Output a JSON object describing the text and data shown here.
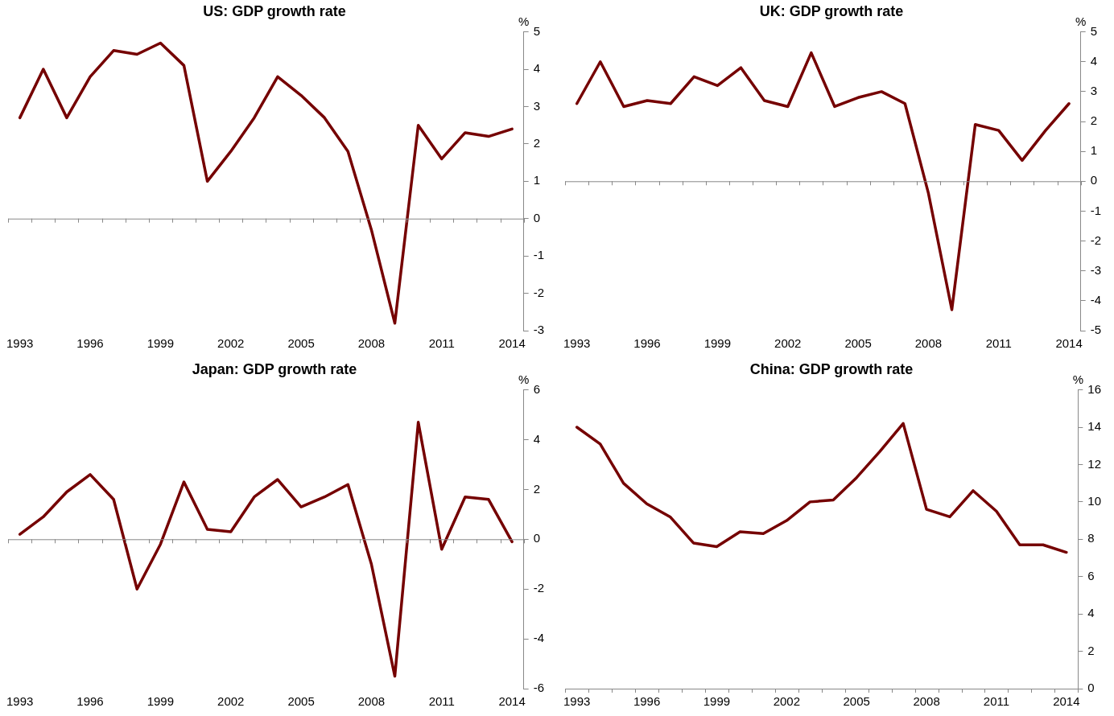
{
  "chart_data": [
    {
      "type": "line",
      "title": "US: GDP growth rate",
      "ylabel": "%",
      "categories": [
        "1993",
        null,
        null,
        "1996",
        null,
        null,
        "1999",
        null,
        null,
        "2002",
        null,
        null,
        "2005",
        null,
        null,
        "2008",
        null,
        null,
        "2011",
        null,
        null,
        "2014"
      ],
      "series": [
        {
          "color": "#750000",
          "values": [
            2.7,
            4.0,
            2.7,
            3.8,
            4.5,
            4.4,
            4.7,
            4.1,
            1.0,
            1.8,
            2.7,
            3.8,
            3.3,
            2.7,
            1.8,
            -0.3,
            -2.8,
            2.5,
            1.6,
            2.3,
            2.2,
            2.4
          ]
        }
      ],
      "ylim": [
        -3,
        5
      ],
      "yticks": [
        -3,
        -2,
        -1,
        0,
        1,
        2,
        3,
        4,
        5
      ],
      "legend": false,
      "marker": "none"
    },
    {
      "type": "line",
      "title": "UK: GDP growth rate",
      "ylabel": "%",
      "categories": [
        "1993",
        null,
        null,
        "1996",
        null,
        null,
        "1999",
        null,
        null,
        "2002",
        null,
        null,
        "2005",
        null,
        null,
        "2008",
        null,
        null,
        "2011",
        null,
        null,
        "2014"
      ],
      "series": [
        {
          "color": "#750000",
          "values": [
            2.6,
            4.0,
            2.5,
            2.7,
            2.6,
            3.5,
            3.2,
            3.8,
            2.7,
            2.5,
            4.3,
            2.5,
            2.8,
            3.0,
            2.6,
            -0.4,
            -4.3,
            1.9,
            1.7,
            0.7,
            1.7,
            2.6
          ]
        }
      ],
      "ylim": [
        -5,
        5
      ],
      "yticks": [
        -5,
        -4,
        -3,
        -2,
        -1,
        0,
        1,
        2,
        3,
        4,
        5
      ],
      "legend": false,
      "marker": "none"
    },
    {
      "type": "line",
      "title": "Japan: GDP growth rate",
      "ylabel": "%",
      "categories": [
        "1993",
        null,
        null,
        "1996",
        null,
        null,
        "1999",
        null,
        null,
        "2002",
        null,
        null,
        "2005",
        null,
        null,
        "2008",
        null,
        null,
        "2011",
        null,
        null,
        "2014"
      ],
      "series": [
        {
          "color": "#750000",
          "values": [
            0.2,
            0.9,
            1.9,
            2.6,
            1.6,
            -2.0,
            -0.2,
            2.3,
            0.4,
            0.3,
            1.7,
            2.4,
            1.3,
            1.7,
            2.2,
            -1.0,
            -5.5,
            4.7,
            -0.4,
            1.7,
            1.6,
            -0.1
          ]
        }
      ],
      "ylim": [
        -6,
        6
      ],
      "yticks": [
        -6,
        -4,
        -2,
        0,
        2,
        4,
        6
      ],
      "legend": false,
      "marker": "none"
    },
    {
      "type": "line",
      "title": "China: GDP growth rate",
      "ylabel": "%",
      "categories": [
        "1993",
        null,
        null,
        "1996",
        null,
        null,
        "1999",
        null,
        null,
        "2002",
        null,
        null,
        "2005",
        null,
        null,
        "2008",
        null,
        null,
        "2011",
        null,
        null,
        "2014"
      ],
      "series": [
        {
          "color": "#750000",
          "values": [
            14.0,
            13.1,
            11.0,
            9.9,
            9.2,
            7.8,
            7.6,
            8.4,
            8.3,
            9.0,
            10.0,
            10.1,
            11.3,
            12.7,
            14.2,
            9.6,
            9.2,
            10.6,
            9.5,
            7.7,
            7.7,
            7.3
          ]
        }
      ],
      "ylim": [
        0,
        16
      ],
      "yticks": [
        0,
        2,
        4,
        6,
        8,
        10,
        12,
        14,
        16
      ],
      "legend": false,
      "marker": "none"
    }
  ]
}
